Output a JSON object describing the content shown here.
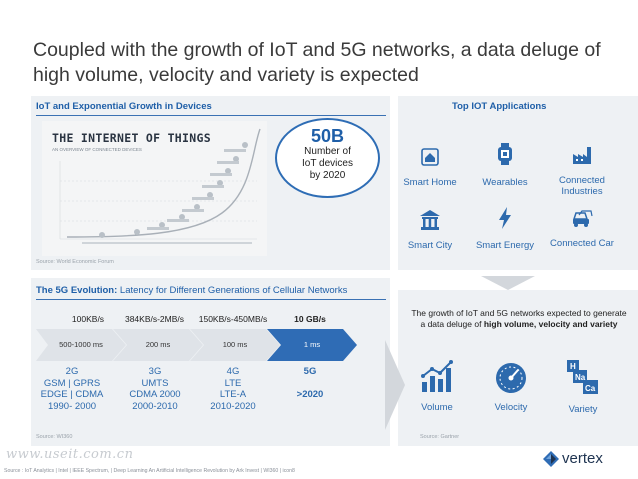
{
  "title": "Coupled with the growth of IoT and 5G networks, a data deluge of high volume, velocity and variety is expected",
  "iot_growth": {
    "heading": "IoT and Exponential Growth in Devices",
    "chart_title": "THE INTERNET OF THINGS",
    "chart_subtitle": "AN OVERVIEW OF CONNECTED DEVICES",
    "stat_value": "50B",
    "stat_line1": "Number of",
    "stat_line2": "IoT devices",
    "stat_line3": "by 2020",
    "source": "Source: World Economic Forum"
  },
  "top_apps": {
    "heading": "Top IOT Applications",
    "items": [
      {
        "icon": "smart-home-icon",
        "label": "Smart Home"
      },
      {
        "icon": "wearables-icon",
        "label": "Wearables"
      },
      {
        "icon": "connected-industries-icon",
        "label": "Connected Industries"
      },
      {
        "icon": "smart-city-icon",
        "label": "Smart City"
      },
      {
        "icon": "smart-energy-icon",
        "label": "Smart Energy"
      },
      {
        "icon": "connected-car-icon",
        "label": "Connected Car"
      }
    ]
  },
  "evolution": {
    "heading_bold": "The 5G Evolution:",
    "heading_rest": " Latency for Different Generations of Cellular Networks",
    "generations": [
      {
        "speed": "100KB/s",
        "latency": "500-1000 ms",
        "name": "2G",
        "tech1": "GSM | GPRS",
        "tech2": "EDGE | CDMA",
        "years": "1990- 2000"
      },
      {
        "speed": "384KB/s-2MB/s",
        "latency": "200 ms",
        "name": "3G",
        "tech1": "UMTS",
        "tech2": "CDMA 2000",
        "years": "2000-2010"
      },
      {
        "speed": "150KB/s-450MB/s",
        "latency": "100 ms",
        "name": "4G",
        "tech1": "LTE",
        "tech2": "LTE-A",
        "years": "2010-2020"
      },
      {
        "speed": "10 GB/s",
        "latency": "1 ms",
        "name": "5G",
        "tech1": ">2020",
        "tech2": "",
        "years": ""
      }
    ],
    "source": "Source: WI360"
  },
  "data_deluge": {
    "text_plain": "The growth of IoT and 5G networks expected to generate a data deluge of ",
    "text_bold": "high volume, velocity and variety",
    "items": [
      {
        "icon": "volume-icon",
        "label": "Volume"
      },
      {
        "icon": "velocity-icon",
        "label": "Velocity"
      },
      {
        "icon": "variety-icon",
        "label": "Variety"
      }
    ],
    "variety_symbols": [
      "H",
      "Na",
      "Ca"
    ],
    "source": "Source: Gartner"
  },
  "footer": {
    "sources": "Source : IoT Analytics | Intel | IEEE Spectrum, | Deep Learning An Artificial Intelligence Revolution by Ark Invest | WI360 | icon8",
    "watermark": "www.useit.com.cn",
    "brand": "vertex"
  },
  "colors": {
    "accent": "#1f5fa8",
    "panel": "#eef1f4",
    "chevron_light": "#dfe3e8",
    "chevron_dark": "#2f6cb5"
  }
}
